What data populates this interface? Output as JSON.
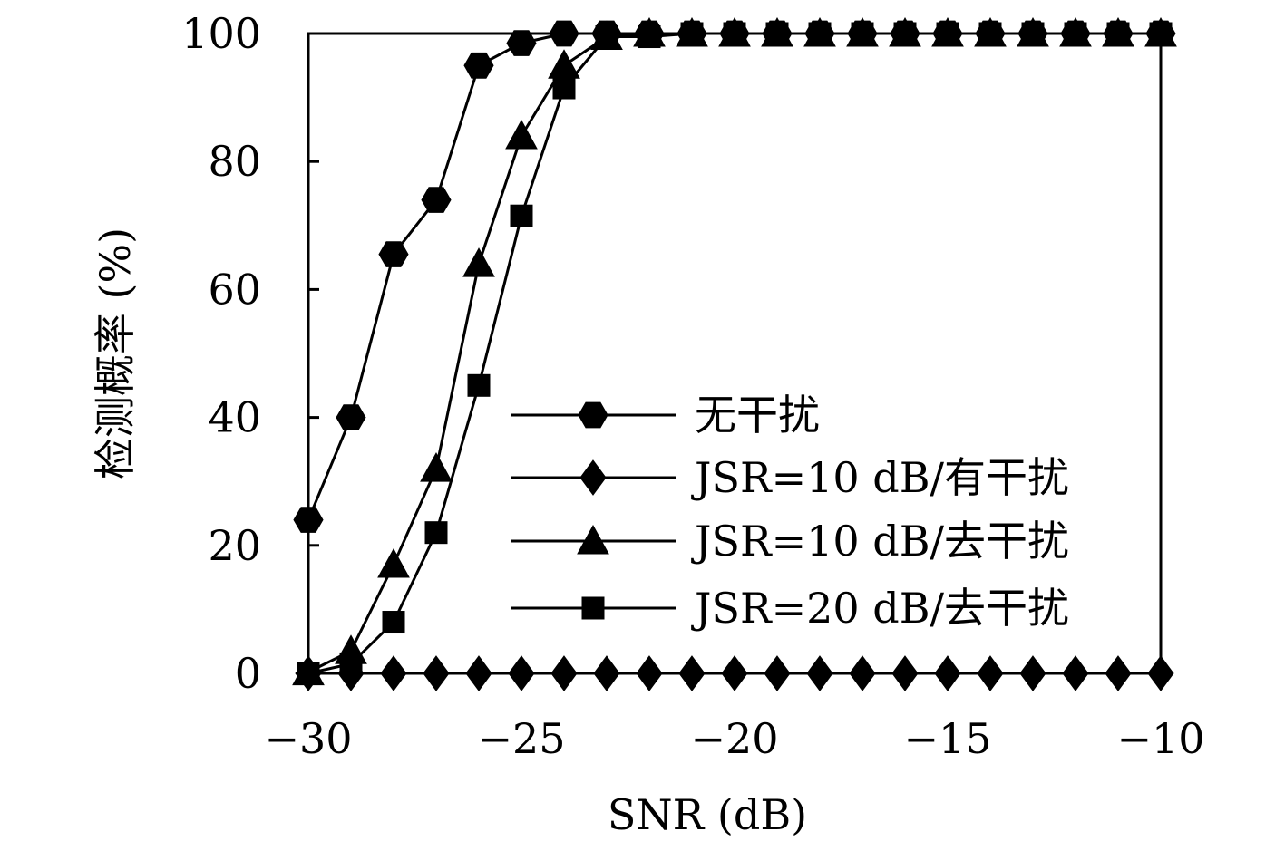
{
  "chart_data": {
    "type": "line",
    "xlabel": "SNR (dB)",
    "ylabel": "检测概率 (%)",
    "xlim": [
      -30,
      -10
    ],
    "ylim": [
      0,
      100
    ],
    "x_ticks": [
      -30,
      -25,
      -20,
      -15,
      -10
    ],
    "x_tick_labels": [
      "−30",
      "−25",
      "−20",
      "−15",
      "−10"
    ],
    "y_ticks": [
      0,
      20,
      40,
      60,
      80,
      100
    ],
    "y_tick_labels": [
      "0",
      "20",
      "40",
      "60",
      "80",
      "100"
    ],
    "grid": false,
    "legend_position": "center-right",
    "x": [
      -30,
      -29,
      -28,
      -27,
      -26,
      -25,
      -24,
      -23,
      -22,
      -21,
      -20,
      -19,
      -18,
      -17,
      -16,
      -15,
      -14,
      -13,
      -12,
      -11,
      -10
    ],
    "series": [
      {
        "name": "无干扰",
        "marker": "hexagon",
        "values": [
          24,
          40,
          65.5,
          74,
          95,
          98.5,
          100,
          100,
          100,
          100,
          100,
          100,
          100,
          100,
          100,
          100,
          100,
          100,
          100,
          100,
          100
        ]
      },
      {
        "name": "JSR=10 dB/有干扰",
        "marker": "diamond",
        "values": [
          0,
          0,
          0,
          0,
          0,
          0,
          0,
          0,
          0,
          0,
          0,
          0,
          0,
          0,
          0,
          0,
          0,
          0,
          0,
          0,
          0
        ]
      },
      {
        "name": "JSR=10 dB/去干扰",
        "marker": "triangle",
        "values": [
          0.2,
          3.5,
          17,
          32,
          64,
          84,
          95,
          99.5,
          100,
          100,
          100,
          100,
          100,
          100,
          100,
          100,
          100,
          100,
          100,
          100,
          100
        ]
      },
      {
        "name": "JSR=20 dB/去干扰",
        "marker": "square",
        "values": [
          0,
          1.5,
          8,
          22,
          45,
          71.5,
          91.5,
          99.5,
          99.5,
          100,
          100,
          100,
          100,
          100,
          100,
          100,
          100,
          100,
          100,
          100,
          100
        ]
      }
    ],
    "colors": {
      "line": "#000000",
      "background": "#ffffff"
    }
  }
}
